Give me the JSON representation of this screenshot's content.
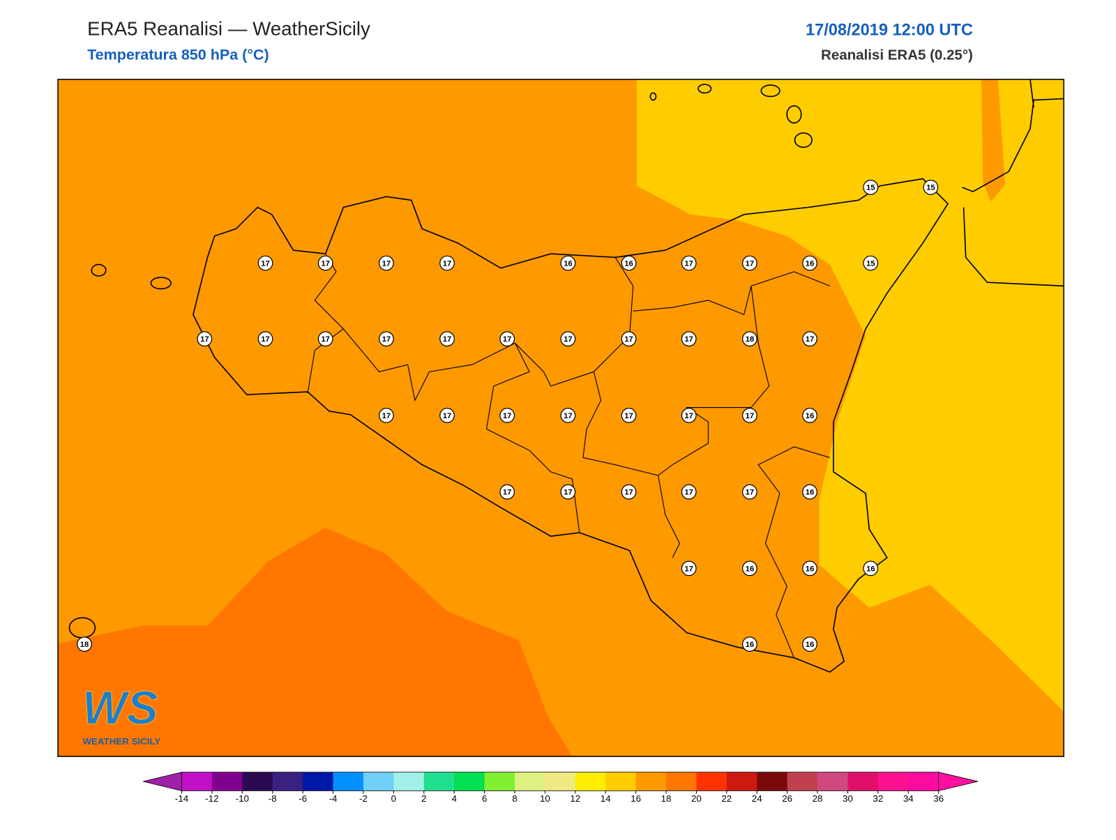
{
  "header": {
    "title": "ERA5 Reanalisi — WeatherSicily",
    "subtitle": "Temperatura 850 hPa (°C)",
    "datetime": "17/08/2019 12:00 UTC",
    "source": "Reanalisi ERA5 (0.25°)"
  },
  "logo": {
    "initials": "WS",
    "name": "WEATHER SICILY"
  },
  "stations": {
    "values": [
      15,
      15,
      17,
      17,
      17,
      17,
      16,
      16,
      17,
      17,
      16,
      15,
      17,
      17,
      17,
      17,
      17,
      17,
      17,
      17,
      17,
      18,
      17,
      17,
      17,
      17,
      17,
      17,
      17,
      17,
      16,
      17,
      17,
      17,
      17,
      17,
      16,
      17,
      16,
      16,
      16,
      18,
      16,
      16
    ]
  },
  "colorbar": {
    "ticks": [
      -14,
      -12,
      -10,
      -8,
      -6,
      -4,
      -2,
      0,
      2,
      4,
      6,
      8,
      10,
      12,
      14,
      16,
      18,
      20,
      22,
      24,
      26,
      28,
      30,
      32,
      34,
      36
    ],
    "colors": [
      "#c010c8",
      "#800090",
      "#2a0a50",
      "#3a2080",
      "#0018a8",
      "#0090ff",
      "#70d0f8",
      "#a0f0e8",
      "#20e090",
      "#00e050",
      "#80f030",
      "#e0f080",
      "#f0e880",
      "#ffee00",
      "#ffcc00",
      "#ff9900",
      "#ff7700",
      "#ff3300",
      "#cc1a10",
      "#7a0a0a",
      "#c04050",
      "#d04880",
      "#e0106a",
      "#ff1090",
      "#ff0aa0"
    ],
    "under": "#a020a8",
    "over": "#ff10a0"
  }
}
